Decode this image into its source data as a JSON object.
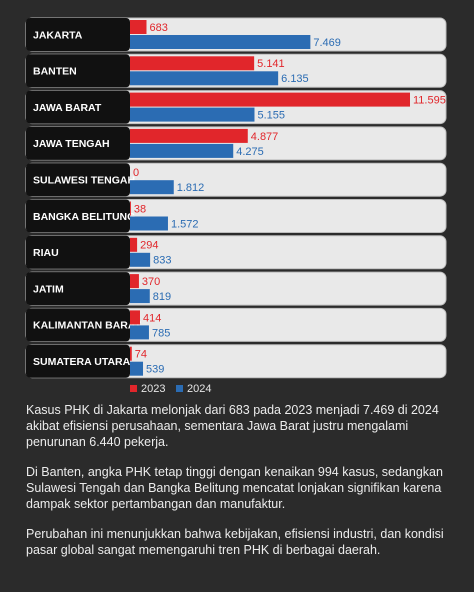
{
  "chart_data": {
    "type": "bar",
    "orientation": "horizontal",
    "categories": [
      "JAKARTA",
      "BANTEN",
      "JAWA BARAT",
      "JAWA TENGAH",
      "SULAWESI TENGAH",
      "BANGKA BELITUNG",
      "RIAU",
      "JATIM",
      "KALIMANTAN BARAT",
      "SUMATERA UTARA"
    ],
    "series": [
      {
        "name": "2023",
        "color": "#e1262b",
        "values": [
          683,
          5141,
          11595,
          4877,
          0,
          38,
          294,
          370,
          414,
          74
        ],
        "value_labels": [
          "683",
          "5.141",
          "11.595",
          "4.877",
          "0",
          "38",
          "294",
          "370",
          "414",
          "74"
        ]
      },
      {
        "name": "2024",
        "color": "#2b6cb3",
        "values": [
          7469,
          6135,
          5155,
          4275,
          1812,
          1572,
          833,
          819,
          785,
          539
        ],
        "value_labels": [
          "7.469",
          "6.135",
          "5.155",
          "4.275",
          "1.812",
          "1.572",
          "833",
          "819",
          "785",
          "539"
        ]
      }
    ],
    "annotations": [
      "Kasus PHK di Jakarta melonjak dari 683 pada 2023 menjadi 7.469 di 2024 akibat efisiensi perusahaan, sementara Jawa Barat justru mengalami penurunan 6.440 pekerja.",
      "Di Banten, angka PHK tetap tinggi dengan kenaikan 994 kasus, sedangkan Sulawesi Tengah dan Bangka Belitung mencatat lonjakan signifikan karena dampak sektor pertambangan dan manufaktur.",
      "Perubahan ini menunjukkan bahwa kebijakan, efisiensi industri, dan kondisi pasar global sangat memengaruhi tren PHK di berbagai daerah."
    ]
  }
}
